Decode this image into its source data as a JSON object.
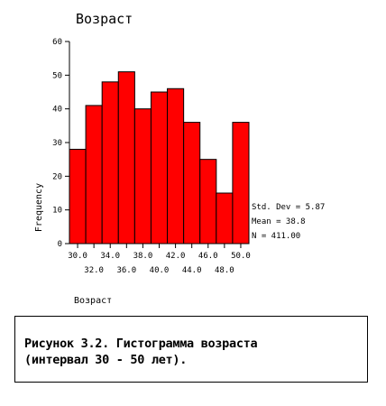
{
  "chart_data": {
    "type": "bar",
    "title": "Возраст",
    "xlabel": "Возраст",
    "ylabel": "Frequency",
    "bin_edges": [
      29,
      31,
      33,
      35,
      37,
      39,
      41,
      43,
      45,
      47,
      49,
      51
    ],
    "values": [
      28,
      41,
      48,
      51,
      40,
      45,
      46,
      36,
      25,
      15,
      36
    ],
    "ylim": [
      0,
      60
    ],
    "xlim": [
      29,
      51
    ],
    "y_ticks": [
      0,
      10,
      20,
      30,
      40,
      50,
      60
    ],
    "x_ticks_row1": [
      "30.0",
      "34.0",
      "38.0",
      "42.0",
      "46.0",
      "50.0"
    ],
    "x_ticks_row1_values": [
      30,
      34,
      38,
      42,
      46,
      50
    ],
    "x_ticks_row2": [
      "32.0",
      "36.0",
      "40.0",
      "44.0",
      "48.0"
    ],
    "x_ticks_row2_values": [
      32,
      36,
      40,
      44,
      48
    ],
    "bar_color": "#ff0000",
    "stats": [
      "Std. Dev = 5.87",
      "Mean = 38.8",
      "N = 411.00"
    ],
    "grid": false
  },
  "caption": {
    "line1": "Рисунок 3.2. Гистограмма возраста",
    "line2": "(интервал 30 - 50 лет)."
  }
}
